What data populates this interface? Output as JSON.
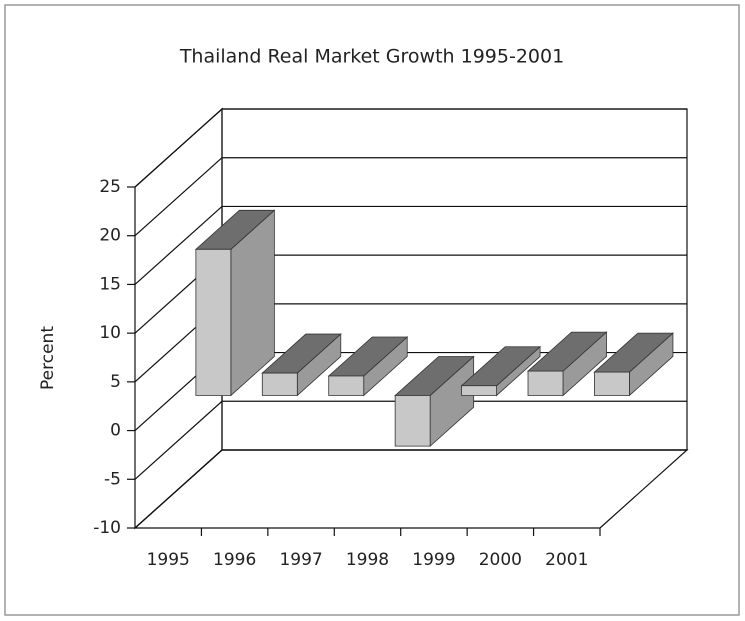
{
  "chart_data": {
    "type": "bar3d",
    "title": "Thailand Real Market Growth 1995-2001",
    "y_label": "Percent",
    "categories": [
      "1995",
      "1996",
      "1997",
      "1998",
      "1999",
      "2000",
      "2001"
    ],
    "values": [
      15,
      2.3,
      2,
      -5.2,
      1,
      2.5,
      2.4
    ],
    "color": "#c8c8c8",
    "ylim": [
      -10,
      25
    ],
    "yticks": [
      -10,
      -5,
      0,
      5,
      10,
      15,
      20,
      25
    ],
    "grid": true
  }
}
